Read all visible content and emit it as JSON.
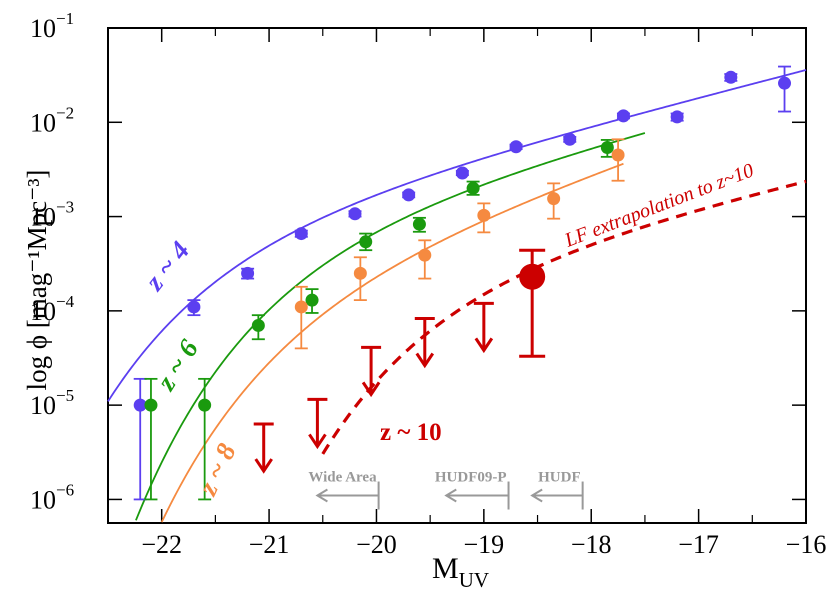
{
  "chart_data": {
    "type": "scatter",
    "title": "",
    "xlabel": "M",
    "xlabel_sub": "UV",
    "ylabel": "log ϕ [mag⁻¹Mpc⁻³]",
    "xlim": [
      -22.5,
      -16
    ],
    "ylim_log10": [
      -6.25,
      -1
    ],
    "x_ticks": [
      -22,
      -21,
      -20,
      -19,
      -18,
      -17,
      -16
    ],
    "x_tick_labels": [
      "−22",
      "−21",
      "−20",
      "−19",
      "−18",
      "−17",
      "−16"
    ],
    "y_ticks_log10": [
      -6,
      -5,
      -4,
      -3,
      -2,
      -1
    ],
    "y_tick_labels": [
      {
        "base": "10",
        "exp": "−6"
      },
      {
        "base": "10",
        "exp": "−5"
      },
      {
        "base": "10",
        "exp": "−4"
      },
      {
        "base": "10",
        "exp": "−3"
      },
      {
        "base": "10",
        "exp": "−2"
      },
      {
        "base": "10",
        "exp": "−1"
      }
    ],
    "colors": {
      "z4": "#5b3ff0",
      "z6": "#1a9a0e",
      "z8": "#f58a40",
      "z10": "#cc0000",
      "survey": "#999999"
    },
    "series": [
      {
        "name": "z ~ 4",
        "label": "z ~ 4",
        "color": "#5b3ff0",
        "points": [
          {
            "x": -22.2,
            "y": 1e-05,
            "lo": 1e-06,
            "hi": 1.9e-05
          },
          {
            "x": -21.7,
            "y": 0.00011,
            "lo": 9e-05,
            "hi": 0.00013
          },
          {
            "x": -21.2,
            "y": 0.00025,
            "lo": 0.00022,
            "hi": 0.00028
          },
          {
            "x": -20.7,
            "y": 0.00066,
            "lo": 0.00061,
            "hi": 0.00071
          },
          {
            "x": -20.2,
            "y": 0.00107,
            "lo": 0.001,
            "hi": 0.00114
          },
          {
            "x": -19.7,
            "y": 0.0017,
            "lo": 0.0016,
            "hi": 0.0018
          },
          {
            "x": -19.2,
            "y": 0.0029,
            "lo": 0.00275,
            "hi": 0.00305
          },
          {
            "x": -18.7,
            "y": 0.0055,
            "lo": 0.0052,
            "hi": 0.0058
          },
          {
            "x": -18.2,
            "y": 0.0066,
            "lo": 0.0062,
            "hi": 0.007
          },
          {
            "x": -17.7,
            "y": 0.0117,
            "lo": 0.011,
            "hi": 0.0124
          },
          {
            "x": -17.2,
            "y": 0.0114,
            "lo": 0.0104,
            "hi": 0.0124
          },
          {
            "x": -16.7,
            "y": 0.03,
            "lo": 0.0275,
            "hi": 0.0325
          },
          {
            "x": -16.2,
            "y": 0.026,
            "lo": 0.013,
            "hi": 0.039
          }
        ],
        "fit": {
          "phi_star": 0.0013,
          "M_star": -21.07,
          "alpha": -1.73
        }
      },
      {
        "name": "z ~ 6",
        "label": "z ~ 6",
        "color": "#1a9a0e",
        "points": [
          {
            "x": -22.1,
            "y": 1e-05,
            "lo": 1e-06,
            "hi": 1.9e-05
          },
          {
            "x": -21.6,
            "y": 1e-05,
            "lo": 1e-06,
            "hi": 1.9e-05
          },
          {
            "x": -21.1,
            "y": 7e-05,
            "lo": 5e-05,
            "hi": 9e-05
          },
          {
            "x": -20.6,
            "y": 0.00013,
            "lo": 9.5e-05,
            "hi": 0.00017
          },
          {
            "x": -20.1,
            "y": 0.00054,
            "lo": 0.00044,
            "hi": 0.00066
          },
          {
            "x": -19.6,
            "y": 0.00083,
            "lo": 0.00069,
            "hi": 0.00097
          },
          {
            "x": -19.1,
            "y": 0.002,
            "lo": 0.0017,
            "hi": 0.00235
          },
          {
            "x": -17.85,
            "y": 0.0054,
            "lo": 0.0043,
            "hi": 0.0065
          }
        ],
        "fit": {
          "phi_star": 0.0014,
          "M_star": -20.24,
          "alpha": -1.74
        }
      },
      {
        "name": "z ~ 8",
        "label": "z ~ 8",
        "color": "#f58a40",
        "points": [
          {
            "x": -20.7,
            "y": 0.00011,
            "lo": 4e-05,
            "hi": 0.00018
          },
          {
            "x": -20.15,
            "y": 0.00025,
            "lo": 0.00013,
            "hi": 0.00037
          },
          {
            "x": -19.55,
            "y": 0.00039,
            "lo": 0.00022,
            "hi": 0.00056
          },
          {
            "x": -19.0,
            "y": 0.00103,
            "lo": 0.00068,
            "hi": 0.00138
          },
          {
            "x": -18.35,
            "y": 0.00155,
            "lo": 0.00095,
            "hi": 0.00225
          },
          {
            "x": -17.75,
            "y": 0.0045,
            "lo": 0.0024,
            "hi": 0.0066
          }
        ],
        "fit": {
          "phi_star": 0.00043,
          "M_star": -20.26,
          "alpha": -1.98
        }
      },
      {
        "name": "z ~ 10",
        "label": "z ~ 10",
        "color": "#cc0000",
        "points": [
          {
            "x": -18.55,
            "y": 0.00023,
            "lo": 3.3e-05,
            "hi": 0.00044
          }
        ],
        "upper_limits": [
          {
            "x": -21.05,
            "y": 6.3e-06
          },
          {
            "x": -20.55,
            "y": 1.15e-05
          },
          {
            "x": -20.05,
            "y": 4.1e-05
          },
          {
            "x": -19.55,
            "y": 8.3e-05
          },
          {
            "x": -19.0,
            "y": 0.00012
          }
        ],
        "extrapolation": {
          "label": "LF extrapolation to z~10",
          "phi_star": 0.00044,
          "M_star": -19.0,
          "alpha": -1.66,
          "x_start": -20.5
        }
      }
    ],
    "survey_limits": [
      {
        "label": "Wide Area",
        "x_limit": -19.98,
        "x_arrow_tip": -20.55,
        "y": 1.1e-06
      },
      {
        "label": "HUDF09-P",
        "x_limit": -18.77,
        "x_arrow_tip": -19.35,
        "y": 1.1e-06
      },
      {
        "label": "HUDF",
        "x_limit": -18.08,
        "x_arrow_tip": -18.55,
        "y": 1.1e-06
      }
    ]
  }
}
